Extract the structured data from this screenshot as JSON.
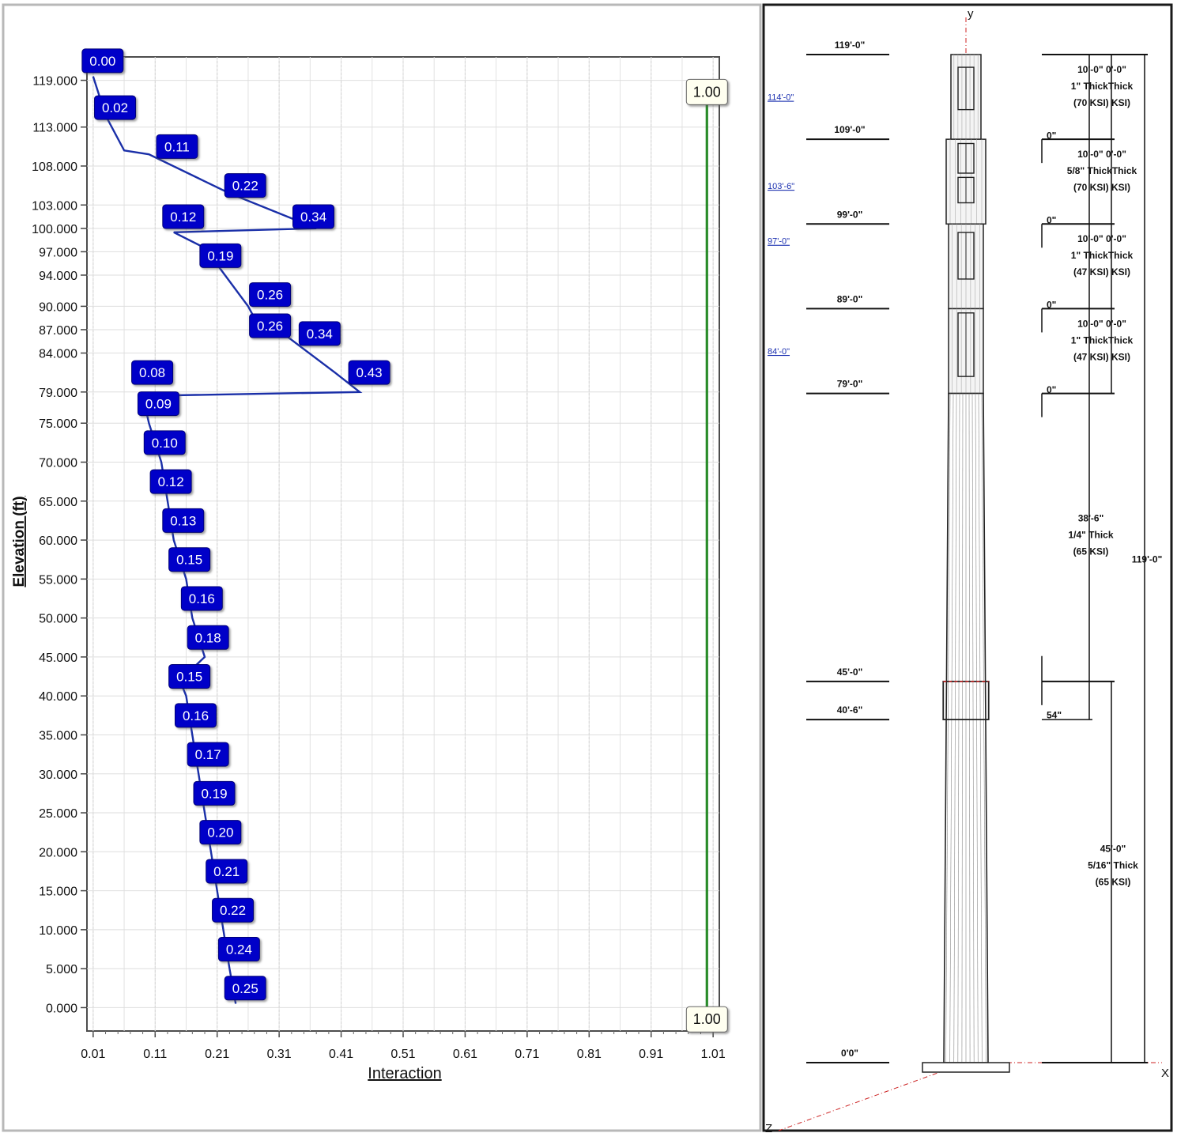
{
  "chart_data": {
    "type": "line",
    "xlabel": "Interaction",
    "ylabel": "Elevation (ft)",
    "xlim": [
      0,
      1.02
    ],
    "ylim": [
      -3,
      122
    ],
    "x_ticks": [
      0.01,
      0.11,
      0.21,
      0.31,
      0.41,
      0.51,
      0.61,
      0.71,
      0.81,
      0.91,
      1.01
    ],
    "x_tick_labels": [
      "0.01",
      "0.11",
      "0.21",
      "0.31",
      "0.41",
      "0.51",
      "0.61",
      "0.71",
      "0.81",
      "0.91",
      "1.01"
    ],
    "y_ticks": [
      0,
      5,
      10,
      15,
      20,
      25,
      30,
      35,
      40,
      45,
      50,
      55,
      60,
      65,
      70,
      75,
      79,
      84,
      87,
      90,
      94,
      97,
      100,
      103,
      108,
      113,
      119
    ],
    "y_tick_labels": [
      "0.000",
      "5.000",
      "10.000",
      "15.000",
      "20.000",
      "25.000",
      "30.000",
      "35.000",
      "40.000",
      "45.000",
      "50.000",
      "55.000",
      "60.000",
      "65.000",
      "70.000",
      "75.000",
      "79.000",
      "84.000",
      "87.000",
      "90.000",
      "94.000",
      "97.000",
      "100.000",
      "103.000",
      "108.000",
      "113.000",
      "119.000"
    ],
    "grid": true,
    "series": [
      {
        "color": "#1a2fa8",
        "points": [
          {
            "x": 0.24,
            "y": 0.5
          },
          {
            "x": 0.23,
            "y": 5
          },
          {
            "x": 0.22,
            "y": 10
          },
          {
            "x": 0.21,
            "y": 15
          },
          {
            "x": 0.2,
            "y": 20
          },
          {
            "x": 0.19,
            "y": 25
          },
          {
            "x": 0.18,
            "y": 30
          },
          {
            "x": 0.17,
            "y": 35
          },
          {
            "x": 0.16,
            "y": 40
          },
          {
            "x": 0.15,
            "y": 42
          },
          {
            "x": 0.19,
            "y": 45
          },
          {
            "x": 0.17,
            "y": 50
          },
          {
            "x": 0.16,
            "y": 55
          },
          {
            "x": 0.14,
            "y": 60
          },
          {
            "x": 0.13,
            "y": 65
          },
          {
            "x": 0.12,
            "y": 70
          },
          {
            "x": 0.1,
            "y": 75
          },
          {
            "x": 0.09,
            "y": 78.5
          },
          {
            "x": 0.44,
            "y": 79
          },
          {
            "x": 0.4,
            "y": 81.5
          },
          {
            "x": 0.3,
            "y": 87.5
          },
          {
            "x": 0.27,
            "y": 88.5
          },
          {
            "x": 0.26,
            "y": 90
          },
          {
            "x": 0.19,
            "y": 97.5
          },
          {
            "x": 0.14,
            "y": 99.5
          },
          {
            "x": 0.37,
            "y": 100
          },
          {
            "x": 0.23,
            "y": 104.5
          },
          {
            "x": 0.1,
            "y": 109.5
          },
          {
            "x": 0.06,
            "y": 110
          },
          {
            "x": 0.03,
            "y": 114.5
          },
          {
            "x": 0.01,
            "y": 119.5
          }
        ]
      },
      {
        "color": "#2a8c2a",
        "points": [
          {
            "x": 1.0,
            "y": 0
          },
          {
            "x": 1.0,
            "y": 119
          }
        ]
      }
    ],
    "data_labels": [
      {
        "text": "0.00",
        "x": 0.01,
        "y": 121.5
      },
      {
        "text": "0.02",
        "x": 0.03,
        "y": 115.5
      },
      {
        "text": "0.11",
        "x": 0.13,
        "y": 110.5
      },
      {
        "text": "0.22",
        "x": 0.24,
        "y": 105.5
      },
      {
        "text": "0.34",
        "x": 0.35,
        "y": 101.5
      },
      {
        "text": "0.12",
        "x": 0.14,
        "y": 101.5
      },
      {
        "text": "0.19",
        "x": 0.2,
        "y": 96.5
      },
      {
        "text": "0.26",
        "x": 0.28,
        "y": 91.5
      },
      {
        "text": "0.26",
        "x": 0.28,
        "y": 87.5
      },
      {
        "text": "0.34",
        "x": 0.36,
        "y": 86.5
      },
      {
        "text": "0.43",
        "x": 0.44,
        "y": 81.5
      },
      {
        "text": "0.08",
        "x": 0.09,
        "y": 81.5
      },
      {
        "text": "0.09",
        "x": 0.1,
        "y": 77.5
      },
      {
        "text": "0.10",
        "x": 0.11,
        "y": 72.5
      },
      {
        "text": "0.12",
        "x": 0.12,
        "y": 67.5
      },
      {
        "text": "0.13",
        "x": 0.14,
        "y": 62.5
      },
      {
        "text": "0.15",
        "x": 0.15,
        "y": 57.5
      },
      {
        "text": "0.16",
        "x": 0.17,
        "y": 52.5
      },
      {
        "text": "0.18",
        "x": 0.18,
        "y": 47.5
      },
      {
        "text": "0.15",
        "x": 0.15,
        "y": 42.5
      },
      {
        "text": "0.16",
        "x": 0.16,
        "y": 37.5
      },
      {
        "text": "0.17",
        "x": 0.18,
        "y": 32.5
      },
      {
        "text": "0.19",
        "x": 0.19,
        "y": 27.5
      },
      {
        "text": "0.20",
        "x": 0.2,
        "y": 22.5
      },
      {
        "text": "0.21",
        "x": 0.21,
        "y": 17.5
      },
      {
        "text": "0.22",
        "x": 0.22,
        "y": 12.5
      },
      {
        "text": "0.24",
        "x": 0.23,
        "y": 7.5
      },
      {
        "text": "0.25",
        "x": 0.24,
        "y": 2.5
      }
    ],
    "limit_labels": [
      {
        "text": "1.00",
        "x": 1.0,
        "y": 117.5
      },
      {
        "text": "1.00",
        "x": 1.0,
        "y": -1.5
      }
    ]
  },
  "tower": {
    "top_axis_label": "y",
    "x_axis_label": "X",
    "z_axis_label": "Z",
    "elevations": [
      {
        "label": "119'-0\"",
        "ft": 119
      },
      {
        "label": "109'-0\"",
        "ft": 109
      },
      {
        "label": "99'-0\"",
        "ft": 99
      },
      {
        "label": "89'-0\"",
        "ft": 89
      },
      {
        "label": "79'-0\"",
        "ft": 79
      },
      {
        "label": "45'-0\"",
        "ft": 45
      },
      {
        "label": "40'-6\"",
        "ft": 40.5
      },
      {
        "label": "0'0\"",
        "ft": 0
      }
    ],
    "mount_elevations": [
      {
        "label": "114'-0\"",
        "ft": 114
      },
      {
        "label": "103'-6\"",
        "ft": 103.5
      },
      {
        "label": "97'-0\"",
        "ft": 97
      },
      {
        "label": "84'-0\"",
        "ft": 84
      }
    ],
    "sections": [
      {
        "lines": [
          "10'-0\" 0'-0\"",
          "1\" ThickThick",
          "(70 KSI)  KSI)"
        ],
        "ft": 115,
        "splice": "0\""
      },
      {
        "lines": [
          "10'-0\" 0'-0\"",
          "5/8\" ThickThick",
          "(70 KSI)  KSI)"
        ],
        "ft": 105,
        "splice": "0\""
      },
      {
        "lines": [
          "10'-0\" 0'-0\"",
          "1\" ThickThick",
          "(47 KSI)  KSI)"
        ],
        "ft": 95,
        "splice": "0\""
      },
      {
        "lines": [
          "10'-0\" 0'-0\"",
          "1\" ThickThick",
          "(47 KSI)  KSI)"
        ],
        "ft": 85,
        "splice": "0\""
      },
      {
        "lines": [
          "38'-6\"",
          "1/4\" Thick",
          "(65 KSI)"
        ],
        "ft": 62,
        "splice": "54\""
      },
      {
        "lines": [
          "45'-0\"",
          "5/16\" Thick",
          "(65 KSI)"
        ],
        "ft": 23,
        "splice": ""
      }
    ],
    "overall_height_label": "119'-0\""
  }
}
